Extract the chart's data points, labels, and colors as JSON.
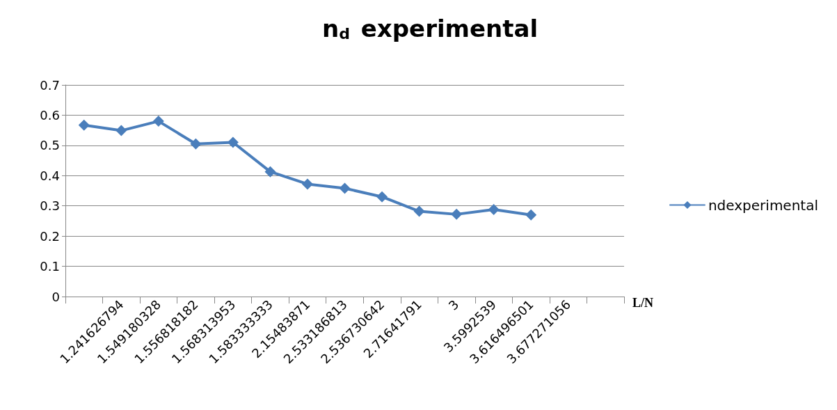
{
  "chart_data": {
    "type": "line",
    "title": "n$_{d}$ experimental",
    "xlabel": "L/N",
    "categories": [
      null,
      "1.241626794",
      "1.549180328",
      "1.556818182",
      "1.568313953",
      "1.583333333",
      "2.15483871",
      "2.533186813",
      "2.536730642",
      "2.71641791",
      "3",
      "3.5992539",
      "3.616496501",
      "3.677271056",
      null
    ],
    "series": [
      {
        "name": "ndexperimental",
        "color": "#4a7ebb",
        "values": [
          0.567,
          0.549,
          0.58,
          0.505,
          0.51,
          0.413,
          0.372,
          0.358,
          0.33,
          0.282,
          0.272,
          0.288,
          0.27,
          null,
          null
        ]
      }
    ],
    "ylim": [
      0,
      0.7
    ],
    "yticks": [
      0,
      0.1,
      0.2,
      0.3,
      0.4,
      0.5,
      0.6,
      0.7
    ],
    "grid": "y",
    "legend": "right",
    "marker": "diamond",
    "line_style": "solid"
  }
}
